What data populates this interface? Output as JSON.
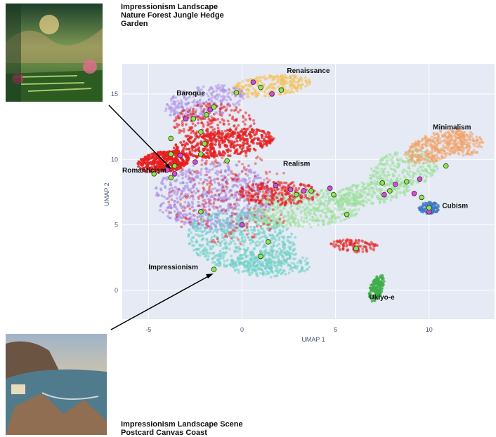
{
  "chart_data": {
    "type": "scatter",
    "xlabel": "UMAP 1",
    "ylabel": "UMAP 2",
    "xticks": [
      -5,
      0,
      5,
      10
    ],
    "yticks": [
      0,
      5,
      10,
      15
    ],
    "xlim": [
      -6.4,
      13.5
    ],
    "ylim": [
      -2.2,
      17.3
    ],
    "grid": true,
    "background_color": "#e5eaf4",
    "cluster_labels": [
      {
        "name": "Renaissance",
        "x": 2.4,
        "y": 16.6
      },
      {
        "name": "Baroque",
        "x": -3.5,
        "y": 14.9
      },
      {
        "name": "Minimalism",
        "x": 10.2,
        "y": 12.3
      },
      {
        "name": "Romanticism",
        "x": -6.4,
        "y": 9.0
      },
      {
        "name": "Realism",
        "x": 2.2,
        "y": 9.5
      },
      {
        "name": "Cubism",
        "x": 10.7,
        "y": 6.3
      },
      {
        "name": "Impressionism",
        "x": -5.0,
        "y": 1.6
      },
      {
        "name": "Ukiyo-e",
        "x": 6.8,
        "y": -0.7
      }
    ],
    "series": [
      {
        "name": "",
        "color": "#a98be6",
        "region": "main-body-left"
      },
      {
        "name": "",
        "color": "#f5c15a",
        "region": "renaissance"
      },
      {
        "name": "",
        "color": "#f2a36b",
        "region": "minimalism"
      },
      {
        "name": "",
        "color": "#9be09a",
        "region": "realism-band"
      },
      {
        "name": "",
        "color": "#6fd1c7",
        "region": "impressionism"
      },
      {
        "name": "",
        "color": "#3d78c5",
        "region": "cubism"
      },
      {
        "name": "",
        "color": "#3fae49",
        "region": "ukiyo-e"
      },
      {
        "name": "",
        "color": "#e62020",
        "region": "romanticism-baroque"
      }
    ],
    "highlight_points": {
      "green": [
        [
          1.0,
          15.5
        ],
        [
          2.1,
          15.3
        ],
        [
          -0.3,
          15.1
        ],
        [
          -1.5,
          14.0
        ],
        [
          -1.9,
          13.4
        ],
        [
          -2.6,
          13.1
        ],
        [
          -2.2,
          12.1
        ],
        [
          -3.8,
          11.6
        ],
        [
          -2.0,
          11.2
        ],
        [
          -3.8,
          10.4
        ],
        [
          -2.2,
          10.4
        ],
        [
          -3.6,
          9.5
        ],
        [
          -0.8,
          9.9
        ],
        [
          -4.7,
          8.9
        ],
        [
          -3.8,
          8.6
        ],
        [
          2.9,
          7.3
        ],
        [
          4.9,
          7.3
        ],
        [
          3.7,
          7.6
        ],
        [
          -2.2,
          6.0
        ],
        [
          5.6,
          5.8
        ],
        [
          7.5,
          8.2
        ],
        [
          7.9,
          7.6
        ],
        [
          8.8,
          8.3
        ],
        [
          9.6,
          7.1
        ],
        [
          10.0,
          6.3
        ],
        [
          10.9,
          9.5
        ],
        [
          1.4,
          3.7
        ],
        [
          6.1,
          3.2
        ],
        [
          1.0,
          2.6
        ],
        [
          -1.5,
          1.6
        ]
      ],
      "magenta": [
        [
          0.6,
          15.9
        ],
        [
          1.6,
          15.0
        ],
        [
          -1.7,
          13.8
        ],
        [
          -3.0,
          13.1
        ],
        [
          -3.3,
          10.3
        ],
        [
          -2.5,
          9.8
        ],
        [
          -4.0,
          9.2
        ],
        [
          -3.6,
          8.9
        ],
        [
          1.8,
          8.0
        ],
        [
          2.6,
          7.7
        ],
        [
          3.3,
          7.6
        ],
        [
          4.7,
          7.8
        ],
        [
          7.6,
          7.3
        ],
        [
          8.2,
          8.1
        ],
        [
          9.5,
          8.5
        ],
        [
          9.2,
          7.4
        ],
        [
          10.0,
          6.0
        ],
        [
          0.0,
          5.0
        ]
      ]
    },
    "annotations": [
      {
        "text": "Impressionism Landscape Nature Forest Jungle Hedge Garden",
        "points_to": [
          -3.8,
          9.4
        ]
      },
      {
        "text": "Impressionism Landscape Scene Postcard Canvas Coast",
        "points_to": [
          -1.5,
          1.6
        ]
      }
    ]
  },
  "captions": {
    "top": "Impressionism Landscape Nature Forest Jungle Hedge Garden",
    "bottom": "Impressionism Landscape Scene Postcard Canvas Coast"
  },
  "thumbnails": {
    "top": "painting-garden-forest",
    "bottom": "painting-coastal-scene"
  }
}
